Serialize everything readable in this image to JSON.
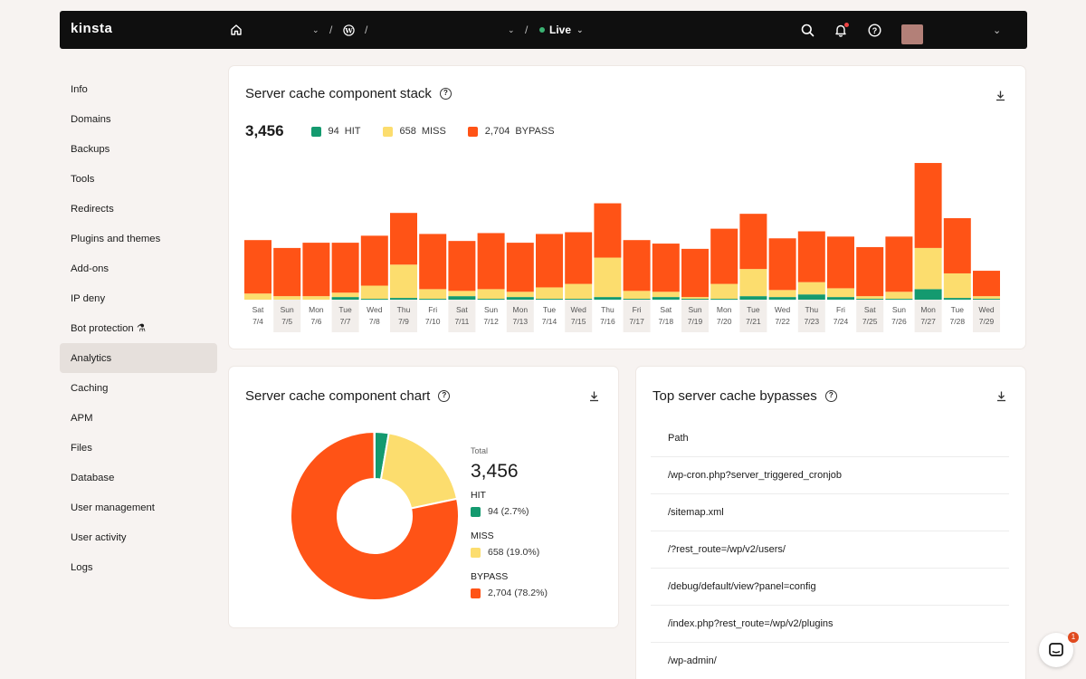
{
  "topbar": {
    "logo": "kinsta",
    "separator": "/",
    "env_label": "Live"
  },
  "sidebar": {
    "items": [
      {
        "label": "Info"
      },
      {
        "label": "Domains"
      },
      {
        "label": "Backups"
      },
      {
        "label": "Tools"
      },
      {
        "label": "Redirects"
      },
      {
        "label": "Plugins and themes"
      },
      {
        "label": "Add-ons"
      },
      {
        "label": "IP deny"
      },
      {
        "label": "Bot protection ⚗"
      },
      {
        "label": "Analytics"
      },
      {
        "label": "Caching"
      },
      {
        "label": "APM"
      },
      {
        "label": "Files"
      },
      {
        "label": "Database"
      },
      {
        "label": "User management"
      },
      {
        "label": "User activity"
      },
      {
        "label": "Logs"
      }
    ],
    "active": "Analytics"
  },
  "stack_card": {
    "title": "Server cache component stack",
    "total": "3,456",
    "legend": [
      {
        "value": "94",
        "label": "HIT"
      },
      {
        "value": "658",
        "label": "MISS"
      },
      {
        "value": "2,704",
        "label": "BYPASS"
      }
    ]
  },
  "colors": {
    "hit": "#149a6f",
    "miss": "#fcdd6e",
    "bypass": "#ff5316",
    "day_highlight": "#f2eeeb"
  },
  "chart_data": {
    "type": "bar",
    "stacked": true,
    "categories": [
      "Sat 7/4",
      "Sun 7/5",
      "Mon 7/6",
      "Tue 7/7",
      "Wed 7/8",
      "Thu 7/9",
      "Fri 7/10",
      "Sat 7/11",
      "Sun 7/12",
      "Mon 7/13",
      "Tue 7/14",
      "Wed 7/15",
      "Thu 7/16",
      "Fri 7/17",
      "Sat 7/18",
      "Sun 7/19",
      "Mon 7/20",
      "Tue 7/21",
      "Wed 7/22",
      "Thu 7/23",
      "Fri 7/24",
      "Sat 7/25",
      "Sun 7/26",
      "Mon 7/27",
      "Tue 7/28",
      "Wed 7/29"
    ],
    "day_labels": [
      "Sat",
      "Sun",
      "Mon",
      "Tue",
      "Wed",
      "Thu",
      "Fri",
      "Sat",
      "Sun",
      "Mon",
      "Tue",
      "Wed",
      "Thu",
      "Fri",
      "Sat",
      "Sun",
      "Mon",
      "Tue",
      "Wed",
      "Thu",
      "Fri",
      "Sat",
      "Sun",
      "Mon",
      "Tue",
      "Wed"
    ],
    "date_labels": [
      "7/4",
      "7/5",
      "7/6",
      "7/7",
      "7/8",
      "7/9",
      "7/10",
      "7/11",
      "7/12",
      "7/13",
      "7/14",
      "7/15",
      "7/16",
      "7/17",
      "7/18",
      "7/19",
      "7/20",
      "7/21",
      "7/22",
      "7/23",
      "7/24",
      "7/25",
      "7/26",
      "7/27",
      "7/28",
      "7/29"
    ],
    "highlighted": [
      false,
      true,
      false,
      true,
      false,
      true,
      false,
      true,
      false,
      true,
      false,
      true,
      false,
      true,
      false,
      true,
      false,
      true,
      false,
      true,
      false,
      true,
      false,
      true,
      false,
      true
    ],
    "series": [
      {
        "name": "HIT",
        "values": [
          0,
          0,
          0,
          3,
          1,
          2,
          1,
          4,
          1,
          3,
          1,
          1,
          3,
          1,
          3,
          1,
          1,
          4,
          3,
          6,
          3,
          1,
          1,
          12,
          2,
          1
        ]
      },
      {
        "name": "MISS",
        "values": [
          7,
          4,
          4,
          5,
          15,
          38,
          11,
          6,
          11,
          6,
          13,
          17,
          45,
          9,
          6,
          2,
          17,
          31,
          8,
          14,
          10,
          3,
          8,
          47,
          28,
          3
        ]
      },
      {
        "name": "BYPASS",
        "values": [
          61,
          55,
          61,
          57,
          57,
          59,
          63,
          57,
          64,
          56,
          61,
          59,
          62,
          58,
          55,
          55,
          63,
          63,
          59,
          58,
          59,
          56,
          63,
          97,
          63,
          29
        ]
      }
    ],
    "ylim": [
      0,
      155
    ]
  },
  "donut_card": {
    "title": "Server cache component chart",
    "total_label": "Total",
    "total": "3,456",
    "segments": [
      {
        "name": "HIT",
        "value": "94",
        "pct": "(2.7%)",
        "fraction": 0.027
      },
      {
        "name": "MISS",
        "value": "658",
        "pct": "(19.0%)",
        "fraction": 0.19
      },
      {
        "name": "BYPASS",
        "value": "2,704",
        "pct": "(78.2%)",
        "fraction": 0.782
      }
    ]
  },
  "bypass_card": {
    "title": "Top server cache bypasses",
    "column": "Path",
    "rows": [
      "/wp-cron.php?server_triggered_cronjob",
      "/sitemap.xml",
      "/?rest_route=/wp/v2/users/",
      "/debug/default/view?panel=config",
      "/index.php?rest_route=/wp/v2/plugins",
      "/wp-admin/"
    ]
  },
  "chat": {
    "badge": "1"
  }
}
